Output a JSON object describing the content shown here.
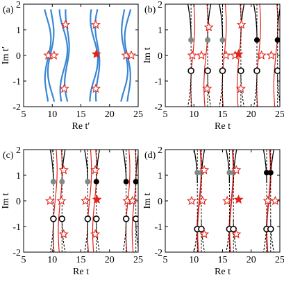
{
  "colors": {
    "blue": "#3a86d4",
    "red": "#e2231a",
    "black": "#000000",
    "gray": "#808a86"
  },
  "chart_data": [
    {
      "type": "scatter",
      "label": "(a)",
      "xlabel": "Re t′",
      "ylabel": "Im t′",
      "xlim": [
        5,
        25
      ],
      "ylim": [
        -2,
        2
      ],
      "xticks": [
        "5",
        "10",
        "15",
        "20",
        "25"
      ],
      "yticks": [
        "-2",
        "-1",
        "0",
        "1",
        "2"
      ],
      "stars_open": [
        [
          9.3,
          0.0
        ],
        [
          10.3,
          0.0
        ],
        [
          12.3,
          1.2
        ],
        [
          12.1,
          -1.3
        ],
        [
          17.6,
          1.2
        ],
        [
          17.6,
          -1.3
        ],
        [
          22.9,
          0.0
        ],
        [
          23.8,
          0.0
        ]
      ],
      "stars_filled": [
        [
          17.7,
          0.05
        ]
      ],
      "curves": "blue trajectories"
    },
    {
      "type": "scatter",
      "label": "(b)",
      "xlabel": "Re t",
      "ylabel": "Im t",
      "xlim": [
        5,
        25
      ],
      "ylim": [
        -2,
        2
      ],
      "xticks": [
        "5",
        "10",
        "15",
        "20",
        "25"
      ],
      "yticks": [
        "-2",
        "-1",
        "0",
        "1",
        "2"
      ],
      "stars_open": [
        [
          9.7,
          0.0
        ],
        [
          11.3,
          0.0
        ],
        [
          12.6,
          1.1
        ],
        [
          12.3,
          -1.3
        ],
        [
          15.6,
          0.0
        ],
        [
          17.2,
          0.0
        ],
        [
          18.3,
          1.2
        ],
        [
          18.2,
          -1.3
        ],
        [
          21.8,
          0.0
        ],
        [
          23.5,
          0.0
        ]
      ],
      "stars_filled": [
        [
          17.8,
          0.05
        ]
      ],
      "dots_gray": [
        [
          9.5,
          0.6
        ],
        [
          12.4,
          0.6
        ],
        [
          15.0,
          0.6
        ]
      ],
      "dots_black": [
        [
          21.0,
          0.6
        ],
        [
          24.6,
          0.6
        ]
      ],
      "dots_open": [
        [
          9.5,
          -0.6
        ],
        [
          12.4,
          -0.6
        ],
        [
          15.0,
          -0.6
        ],
        [
          18.2,
          -0.6
        ],
        [
          21.0,
          -0.6
        ],
        [
          24.6,
          -0.6
        ]
      ]
    },
    {
      "type": "scatter",
      "label": "(c)",
      "xlabel": "Re t",
      "ylabel": "Im t",
      "xlim": [
        5,
        25
      ],
      "ylim": [
        -2,
        2
      ],
      "xticks": [
        "5",
        "10",
        "15",
        "20",
        "25"
      ],
      "yticks": [
        "-2",
        "-1",
        "0",
        "1",
        "2"
      ],
      "stars_open": [
        [
          9.6,
          0.0
        ],
        [
          11.6,
          0.0
        ],
        [
          12.0,
          1.2
        ],
        [
          12.0,
          -1.3
        ],
        [
          15.8,
          0.0
        ],
        [
          17.5,
          1.2
        ],
        [
          17.5,
          -1.3
        ],
        [
          23.1,
          0.0
        ],
        [
          24.0,
          0.0
        ]
      ],
      "stars_filled": [
        [
          17.8,
          0.05
        ]
      ],
      "dots_gray": [
        [
          10.2,
          0.75
        ],
        [
          11.7,
          0.75
        ],
        [
          16.2,
          0.75
        ]
      ],
      "dots_black": [
        [
          17.7,
          0.75
        ],
        [
          22.9,
          0.75
        ],
        [
          24.6,
          0.75
        ]
      ],
      "dots_open": [
        [
          10.2,
          -0.7
        ],
        [
          11.7,
          -0.7
        ],
        [
          16.2,
          -0.7
        ],
        [
          17.7,
          -0.7
        ],
        [
          22.9,
          -0.7
        ],
        [
          24.6,
          -0.7
        ]
      ]
    },
    {
      "type": "scatter",
      "label": "(d)",
      "xlabel": "Re t",
      "ylabel": "Im t",
      "xlim": [
        5,
        25
      ],
      "ylim": [
        -2,
        2
      ],
      "xticks": [
        "5",
        "10",
        "15",
        "20",
        "25"
      ],
      "yticks": [
        "-2",
        "-1",
        "0",
        "1",
        "2"
      ],
      "stars_open": [
        [
          9.6,
          0.0
        ],
        [
          11.5,
          0.0
        ],
        [
          11.8,
          1.2
        ],
        [
          11.8,
          -1.3
        ],
        [
          15.8,
          0.0
        ],
        [
          17.4,
          1.2
        ],
        [
          17.4,
          -1.3
        ],
        [
          22.9,
          0.0
        ],
        [
          24.2,
          0.0
        ]
      ],
      "stars_filled": [
        [
          17.8,
          0.05
        ]
      ],
      "dots_gray": [
        [
          10.6,
          1.1
        ],
        [
          11.3,
          1.1
        ],
        [
          16.2,
          1.1
        ],
        [
          16.9,
          1.1
        ]
      ],
      "dots_black": [
        [
          22.7,
          1.1
        ],
        [
          23.4,
          1.1
        ]
      ],
      "dots_open": [
        [
          10.6,
          -1.1
        ],
        [
          11.3,
          -1.1
        ],
        [
          16.2,
          -1.1
        ],
        [
          16.9,
          -1.1
        ],
        [
          22.7,
          -1.1
        ],
        [
          23.4,
          -1.1
        ]
      ]
    }
  ]
}
